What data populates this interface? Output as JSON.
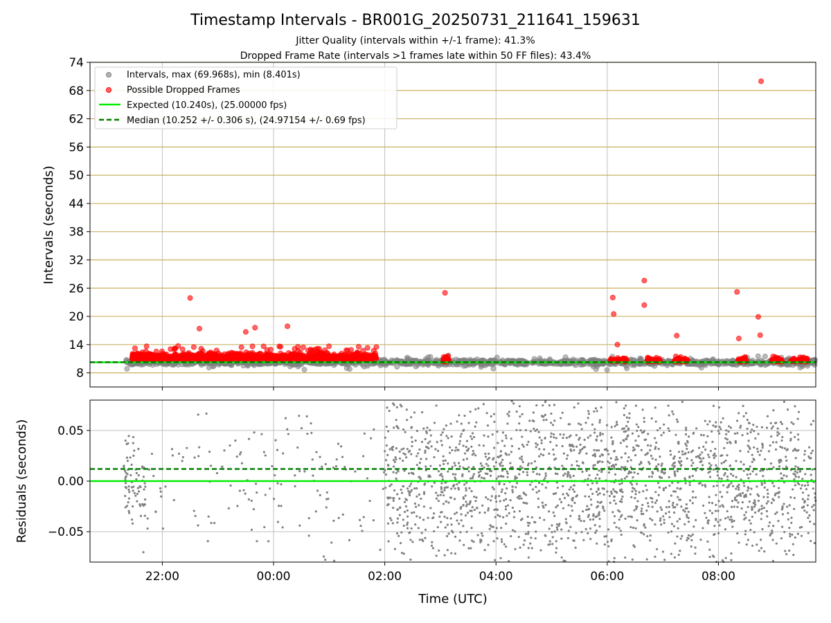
{
  "figure": {
    "title": "Timestamp Intervals - BR001G_20250731_211641_159631",
    "subtitle_1": "Jitter Quality (intervals within +/-1 frame): 41.3%",
    "subtitle_2": "Dropped Frame Rate (intervals >1 frames late within 50 FF files): 43.4%"
  },
  "colors": {
    "intervals": "#808080",
    "dropped": "#ff0000",
    "expected": "#00ee00",
    "median": "#007f00",
    "hgrid_top": "#c8b060",
    "grid": "#bfbfbf"
  },
  "chart_data": [
    {
      "type": "scatter",
      "ylabel": "Intervals (seconds)",
      "ylim": [
        5,
        74
      ],
      "y_ticks": [
        "8",
        "14",
        "20",
        "26",
        "32",
        "38",
        "44",
        "50",
        "56",
        "62",
        "68",
        "74"
      ],
      "x_ticks": [
        "22:00",
        "00:00",
        "02:00",
        "04:00",
        "06:00",
        "08:00"
      ],
      "x_range_hours_since_2000": [
        20.7,
        33.75
      ],
      "legend": {
        "position": "upper-left",
        "entries": [
          "Intervals, max (69.968s), min (8.401s)",
          "Possible Dropped Frames",
          "Expected (10.240s), (25.00000 fps)",
          "Median (10.252 +/- 0.306 s), (24.97154 +/- 0.69 fps)"
        ]
      },
      "expected": 10.24,
      "median": 10.252,
      "max_interval": 69.968,
      "min_interval": 8.401,
      "dropped_outliers": [
        {
          "time": "22:30",
          "y": 23.9
        },
        {
          "time": "03:05",
          "y": 25.0
        },
        {
          "time": "06:06",
          "y": 24.0
        },
        {
          "time": "06:07",
          "y": 20.5
        },
        {
          "time": "06:11",
          "y": 14.0
        },
        {
          "time": "06:40",
          "y": 27.6
        },
        {
          "time": "06:40",
          "y": 22.4
        },
        {
          "time": "07:15",
          "y": 15.9
        },
        {
          "time": "08:20",
          "y": 25.2
        },
        {
          "time": "08:22",
          "y": 15.3
        },
        {
          "time": "08:43",
          "y": 19.9
        },
        {
          "time": "08:45",
          "y": 16.0
        },
        {
          "time": "08:46",
          "y": 69.968
        },
        {
          "time": "00:15",
          "y": 17.9
        },
        {
          "time": "23:40",
          "y": 17.6
        },
        {
          "time": "22:40",
          "y": 17.4
        },
        {
          "time": "23:30",
          "y": 16.7
        }
      ]
    },
    {
      "type": "scatter",
      "ylabel": "Residuals (seconds)",
      "xlabel": "Time (UTC)",
      "ylim": [
        -0.08,
        0.08
      ],
      "y_ticks": [
        "0.05",
        "0.00",
        "−0.05"
      ],
      "x_ticks": [
        "22:00",
        "00:00",
        "02:00",
        "04:00",
        "06:00",
        "08:00"
      ],
      "expected_residual": 0.0,
      "median_residual": 0.012
    }
  ]
}
